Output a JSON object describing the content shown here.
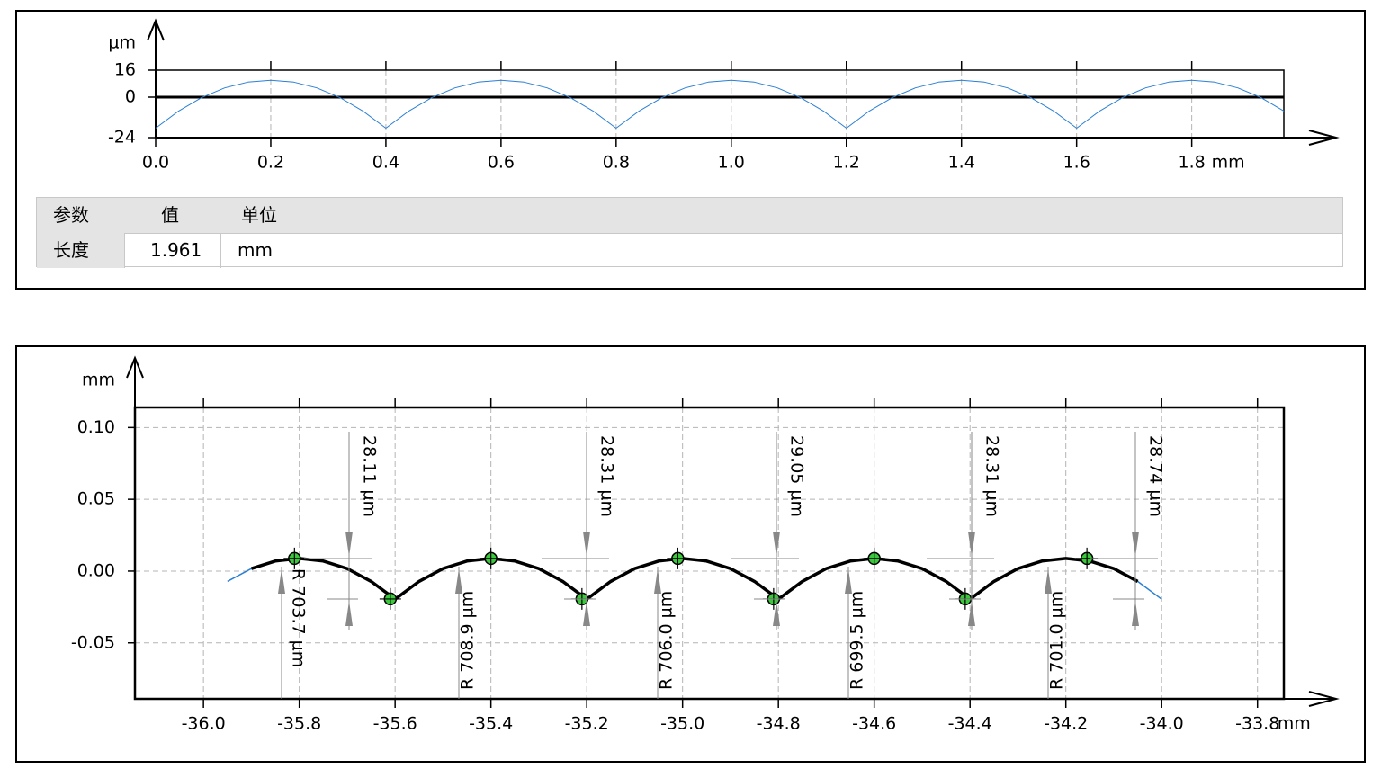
{
  "chart_data": [
    {
      "type": "line",
      "y_unit": "µm",
      "x_unit": "mm",
      "xlim": [
        0,
        1.96
      ],
      "ylim": [
        -24,
        16
      ],
      "xticks": [
        {
          "value": 0,
          "label": "0.0"
        },
        0.2,
        0.4,
        0.6,
        0.8,
        {
          "value": 1,
          "label": "1.0"
        },
        1.2,
        1.4,
        1.6,
        1.8
      ],
      "yticks": [
        16,
        0,
        -24
      ],
      "grid": [
        "x"
      ],
      "zero_line": true,
      "series": [
        {
          "color": "#2a7fd4",
          "width": 1,
          "x": [
            0,
            0.04,
            0.08,
            0.12,
            0.16,
            0.2,
            0.24,
            0.28,
            0.32,
            0.36,
            0.4,
            0.44,
            0.48,
            0.52,
            0.56,
            0.6,
            0.64,
            0.68,
            0.72,
            0.76,
            0.8,
            0.84,
            0.88,
            0.92,
            0.96,
            1,
            1.04,
            1.08,
            1.12,
            1.16,
            1.2,
            1.24,
            1.28,
            1.32,
            1.36,
            1.4,
            1.44,
            1.48,
            1.52,
            1.56,
            1.6,
            1.64,
            1.68,
            1.72,
            1.76,
            1.8,
            1.84,
            1.88,
            1.92,
            1.96
          ],
          "values": [
            -18.4,
            -8.2,
            -0.2,
            5.5,
            8.9,
            10,
            8.9,
            5.5,
            -0.2,
            -8.2,
            -18.4,
            -8.2,
            -0.2,
            5.5,
            8.9,
            10,
            8.9,
            5.5,
            -0.2,
            -8.2,
            -18.4,
            -8.2,
            -0.2,
            5.5,
            8.9,
            10,
            8.9,
            5.5,
            -0.2,
            -8.2,
            -18.4,
            -8.2,
            -0.2,
            5.5,
            8.9,
            10,
            8.9,
            5.5,
            -0.2,
            -8.2,
            -18.4,
            -8.2,
            -0.2,
            5.5,
            8.9,
            10,
            8.9,
            5.5,
            -0.2,
            -8.2
          ]
        }
      ]
    },
    {
      "type": "line",
      "y_unit": "mm",
      "x_unit": "mm",
      "xlim": [
        -36.143,
        -33.745
      ],
      "ylim": [
        -0.089,
        0.114
      ],
      "xticks": [
        {
          "value": -36,
          "label": "-36.0"
        },
        -35.8,
        -35.6,
        -35.4,
        -35.2,
        {
          "value": -35,
          "label": "-35.0"
        },
        -34.8,
        -34.6,
        -34.4,
        -34.2,
        {
          "value": -34,
          "label": "-34.0"
        },
        -33.8
      ],
      "yticks": [
        {
          "value": 0.1,
          "label": "0.10"
        },
        0.05,
        {
          "value": 0,
          "label": "0.00"
        },
        -0.05
      ],
      "grid": [
        "x",
        "y"
      ],
      "zero_line": false,
      "series": [
        {
          "color": "#2a7fd4",
          "width": 1.5,
          "x": [
            -35.95,
            -35.9,
            -35.85,
            -35.8,
            -35.75,
            -35.7,
            -35.65,
            -35.6,
            -35.55,
            -35.5,
            -35.45,
            -35.4,
            -35.35,
            -35.3,
            -35.25,
            -35.2,
            -35.15,
            -35.1,
            -35.05,
            -35,
            -34.95,
            -34.9,
            -34.85,
            -34.8,
            -34.75,
            -34.7,
            -34.65,
            -34.6,
            -34.55,
            -34.5,
            -34.45,
            -34.4,
            -34.35,
            -34.3,
            -34.25,
            -34.2,
            -34.15,
            -34.1,
            -34.05,
            -34
          ],
          "values": [
            -0.0072,
            0.0017,
            0.007,
            0.0088,
            0.007,
            0.0017,
            -0.0072,
            -0.0196,
            -0.0072,
            0.0017,
            0.007,
            0.0088,
            0.007,
            0.0017,
            -0.0072,
            -0.0196,
            -0.0072,
            0.0017,
            0.007,
            0.0088,
            0.007,
            0.0017,
            -0.0072,
            -0.0196,
            -0.0072,
            0.0017,
            0.007,
            0.0088,
            0.007,
            0.0017,
            -0.0072,
            -0.0196,
            -0.0072,
            0.0017,
            0.007,
            0.0088,
            0.007,
            0.0017,
            -0.0072,
            -0.0196
          ]
        },
        {
          "color": "#000000",
          "width": 3.5,
          "x": [
            -35.9,
            -35.85,
            -35.8,
            -35.75,
            -35.7,
            -35.65,
            -35.6,
            -35.55,
            -35.5,
            -35.45,
            -35.4,
            -35.35,
            -35.3,
            -35.25,
            -35.2,
            -35.15,
            -35.1,
            -35.05,
            -35,
            -34.95,
            -34.9,
            -34.85,
            -34.8,
            -34.75,
            -34.7,
            -34.65,
            -34.6,
            -34.55,
            -34.5,
            -34.45,
            -34.4,
            -34.35,
            -34.3,
            -34.25,
            -34.2,
            -34.15,
            -34.1,
            -34.05
          ],
          "values": [
            0.0017,
            0.007,
            0.0088,
            0.007,
            0.0017,
            -0.0072,
            -0.0196,
            -0.0072,
            0.0017,
            0.007,
            0.0088,
            0.007,
            0.0017,
            -0.0072,
            -0.0196,
            -0.0072,
            0.0017,
            0.007,
            0.0088,
            0.007,
            0.0017,
            -0.0072,
            -0.0196,
            -0.0072,
            0.0017,
            0.007,
            0.0088,
            0.007,
            0.0017,
            -0.0072,
            -0.0196,
            -0.0072,
            0.0017,
            0.007,
            0.0088,
            0.007,
            0.0017,
            -0.0072
          ]
        }
      ],
      "points": {
        "color": "#3cc83c",
        "x": [
          -35.81,
          -35.61,
          -35.4,
          -35.21,
          -35.01,
          -34.81,
          -34.6,
          -34.41,
          -34.156
        ],
        "values": [
          0.0088,
          -0.0194,
          0.0088,
          -0.0194,
          0.0088,
          -0.0194,
          0.0088,
          -0.0194,
          0.0088
        ]
      },
      "annotations": {
        "heights": [
          "28.11 µm",
          "28.31 µm",
          "29.05 µm",
          "28.31 µm",
          "28.74 µm"
        ],
        "radii": [
          "R 703.7 µm",
          "R 708.9 µm",
          "R 706.0 µm",
          "R 699.5 µm",
          "R 701.0 µm"
        ]
      }
    }
  ],
  "table": {
    "header": [
      "参数",
      "值",
      "单位"
    ],
    "rows": [
      [
        "长度",
        "1.961",
        "mm"
      ]
    ]
  }
}
